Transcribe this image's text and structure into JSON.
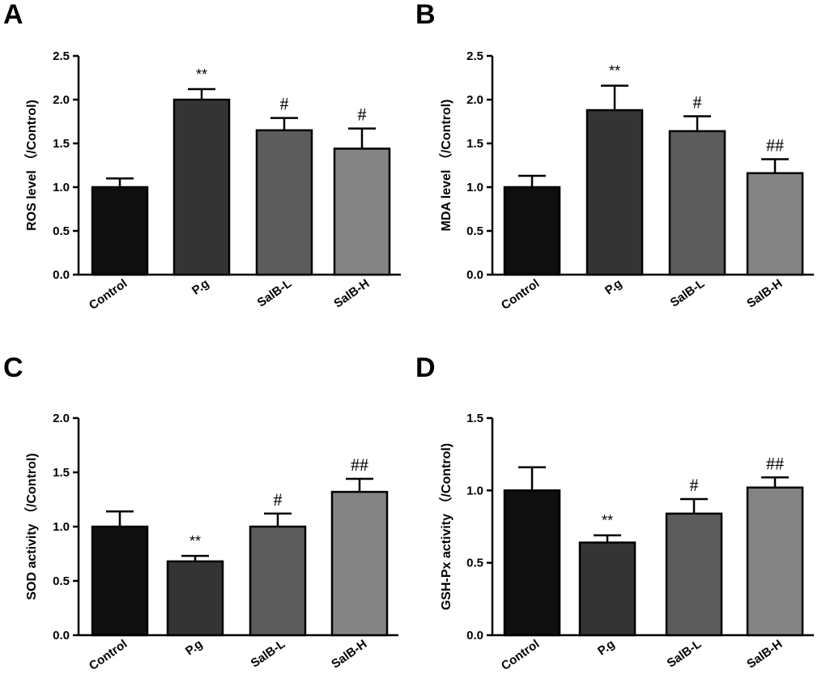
{
  "chart_data": [
    {
      "panel": "A",
      "type": "bar",
      "categories": [
        "Control",
        "P.g",
        "SalB-L",
        "SalB-H"
      ],
      "values": [
        1.0,
        2.0,
        1.65,
        1.44
      ],
      "errors": [
        0.1,
        0.12,
        0.14,
        0.23
      ],
      "significance": [
        "",
        "**",
        "#",
        "#"
      ],
      "colors": [
        "#0f0f0f",
        "#343434",
        "#5c5c5c",
        "#848484"
      ],
      "ylabel": "ROS level （/Control)",
      "ylim": [
        0,
        2.5
      ],
      "yticks": [
        "0.0",
        "0.5",
        "1.0",
        "1.5",
        "2.0",
        "2.5"
      ]
    },
    {
      "panel": "B",
      "type": "bar",
      "categories": [
        "Control",
        "P.g",
        "SalB-L",
        "SalB-H"
      ],
      "values": [
        1.0,
        1.88,
        1.64,
        1.16
      ],
      "errors": [
        0.13,
        0.28,
        0.17,
        0.16
      ],
      "significance": [
        "",
        "**",
        "#",
        "##"
      ],
      "colors": [
        "#0f0f0f",
        "#343434",
        "#5c5c5c",
        "#848484"
      ],
      "ylabel": "MDA level （/Control)",
      "ylim": [
        0,
        2.5
      ],
      "yticks": [
        "0.0",
        "0.5",
        "1.0",
        "1.5",
        "2.0",
        "2.5"
      ]
    },
    {
      "panel": "C",
      "type": "bar",
      "categories": [
        "Control",
        "P.g",
        "SalB-L",
        "SalB-H"
      ],
      "values": [
        1.0,
        0.68,
        1.0,
        1.32
      ],
      "errors": [
        0.14,
        0.05,
        0.12,
        0.12
      ],
      "significance": [
        "",
        "**",
        "#",
        "##"
      ],
      "colors": [
        "#0f0f0f",
        "#343434",
        "#5c5c5c",
        "#848484"
      ],
      "ylabel": "SOD activity （/Control)",
      "ylim": [
        0,
        2.0
      ],
      "yticks": [
        "0.0",
        "0.5",
        "1.0",
        "1.5",
        "2.0"
      ]
    },
    {
      "panel": "D",
      "type": "bar",
      "categories": [
        "Control",
        "P.g",
        "SalB-L",
        "SalB-H"
      ],
      "values": [
        1.0,
        0.64,
        0.84,
        1.02
      ],
      "errors": [
        0.16,
        0.05,
        0.1,
        0.07
      ],
      "significance": [
        "",
        "**",
        "#",
        "##"
      ],
      "colors": [
        "#0f0f0f",
        "#343434",
        "#5c5c5c",
        "#848484"
      ],
      "ylabel": "GSH-Px activity （/Control)",
      "ylim": [
        0,
        1.5
      ],
      "yticks": [
        "0.0",
        "0.5",
        "1.0",
        "1.5"
      ]
    }
  ]
}
